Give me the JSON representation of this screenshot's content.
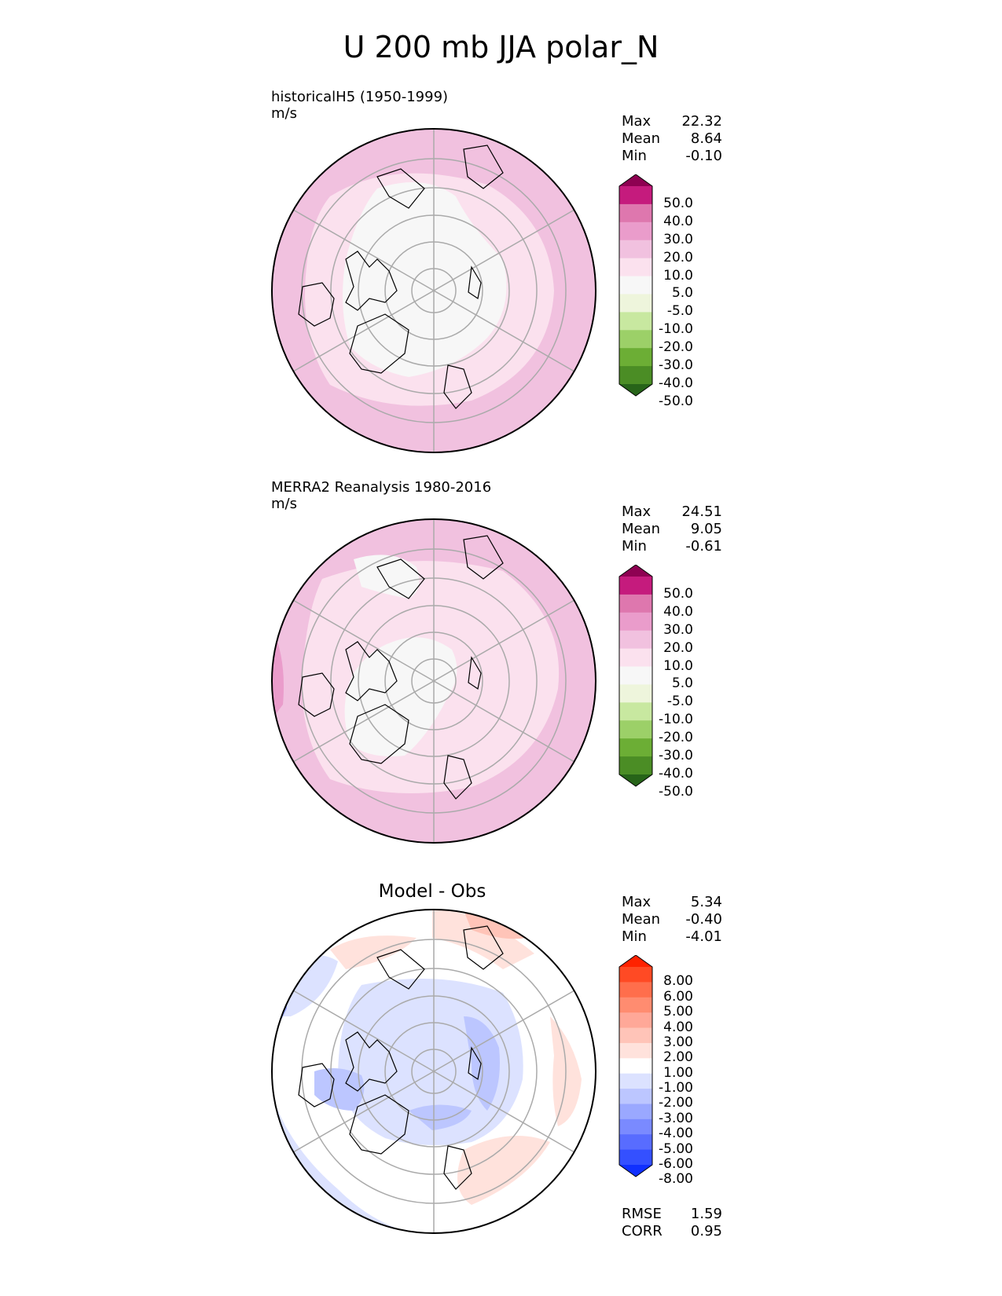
{
  "title": "U 200 mb JJA polar_N",
  "panels": [
    {
      "id": "test",
      "title_lines": [
        "historicalH5 (1950-1999)",
        "m/s"
      ],
      "stats": [
        {
          "label": "Max",
          "value": "22.32"
        },
        {
          "label": "Mean",
          "value": "8.64"
        },
        {
          "label": "Min",
          "value": "-0.10"
        }
      ],
      "colorbar": {
        "ticks": [
          "50.0",
          "40.0",
          "30.0",
          "20.0",
          "10.0",
          "5.0",
          "-5.0",
          "-10.0",
          "-20.0",
          "-30.0",
          "-40.0",
          "-50.0"
        ],
        "colors": [
          "#8e0152",
          "#c51b7d",
          "#de77ae",
          "#ea9ccb",
          "#f1c1df",
          "#fbe1ee",
          "#f7f7f7",
          "#eef5dc",
          "#c8e8a0",
          "#9cd068",
          "#6cae35",
          "#4b8d25",
          "#276419"
        ]
      }
    },
    {
      "id": "ref",
      "title_lines": [
        "MERRA2 Reanalysis 1980-2016",
        "m/s"
      ],
      "stats": [
        {
          "label": "Max",
          "value": "24.51"
        },
        {
          "label": "Mean",
          "value": "9.05"
        },
        {
          "label": "Min",
          "value": "-0.61"
        }
      ],
      "colorbar": {
        "ticks": [
          "50.0",
          "40.0",
          "30.0",
          "20.0",
          "10.0",
          "5.0",
          "-5.0",
          "-10.0",
          "-20.0",
          "-30.0",
          "-40.0",
          "-50.0"
        ],
        "colors": [
          "#8e0152",
          "#c51b7d",
          "#de77ae",
          "#ea9ccb",
          "#f1c1df",
          "#fbe1ee",
          "#f7f7f7",
          "#eef5dc",
          "#c8e8a0",
          "#9cd068",
          "#6cae35",
          "#4b8d25",
          "#276419"
        ]
      }
    },
    {
      "id": "diff",
      "center_title": "Model - Obs",
      "stats": [
        {
          "label": "Max",
          "value": "5.34"
        },
        {
          "label": "Mean",
          "value": "-0.40"
        },
        {
          "label": "Min",
          "value": "-4.01"
        }
      ],
      "extra_stats": [
        {
          "label": "RMSE",
          "value": "1.59"
        },
        {
          "label": "CORR",
          "value": "0.95"
        }
      ],
      "colorbar": {
        "ticks": [
          "8.00",
          "6.00",
          "5.00",
          "4.00",
          "3.00",
          "2.00",
          "1.00",
          "-1.00",
          "-2.00",
          "-3.00",
          "-4.00",
          "-5.00",
          "-6.00",
          "-8.00"
        ],
        "colors": [
          "#ff2200",
          "#ff4a24",
          "#ff6e4c",
          "#ff8c70",
          "#ffa898",
          "#ffc4b8",
          "#ffe2dc",
          "#ffffff",
          "#dce2ff",
          "#bcc6ff",
          "#9aa8ff",
          "#7a8aff",
          "#586cff",
          "#3450ff",
          "#1030ff"
        ]
      }
    }
  ],
  "chart_data": [
    {
      "type": "heatmap",
      "title": "historicalH5 (1950-1999)",
      "units": "m/s",
      "projection": "north polar stereographic",
      "stats": {
        "max": 22.32,
        "mean": 8.64,
        "min": -0.1
      },
      "levels": [
        -50,
        -40,
        -30,
        -20,
        -10,
        -5,
        5,
        10,
        20,
        30,
        40,
        50
      ]
    },
    {
      "type": "heatmap",
      "title": "MERRA2 Reanalysis 1980-2016",
      "units": "m/s",
      "projection": "north polar stereographic",
      "stats": {
        "max": 24.51,
        "mean": 9.05,
        "min": -0.61
      },
      "levels": [
        -50,
        -40,
        -30,
        -20,
        -10,
        -5,
        5,
        10,
        20,
        30,
        40,
        50
      ]
    },
    {
      "type": "heatmap",
      "title": "Model - Obs",
      "projection": "north polar stereographic",
      "stats": {
        "max": 5.34,
        "mean": -0.4,
        "min": -4.01,
        "rmse": 1.59,
        "corr": 0.95
      },
      "levels": [
        -8,
        -6,
        -5,
        -4,
        -3,
        -2,
        -1,
        1,
        2,
        3,
        4,
        5,
        6,
        8
      ]
    }
  ]
}
